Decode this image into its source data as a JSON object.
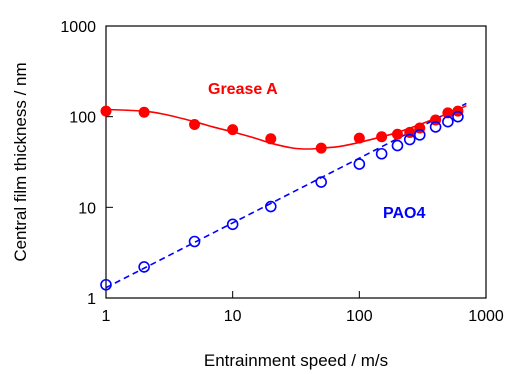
{
  "chart_data": {
    "type": "scatter",
    "xscale": "log",
    "yscale": "log",
    "xlim": [
      1,
      1000
    ],
    "ylim": [
      1,
      1000
    ],
    "grid": false,
    "xlabel": "Entrainment speed / m/s",
    "ylabel": "Central film thickness / nm",
    "xticks": [
      "1",
      "10",
      "100",
      "1000"
    ],
    "yticks": [
      "1",
      "10",
      "100",
      "1000"
    ],
    "series": [
      {
        "name": "Grease A",
        "color": "#ff0000",
        "marker": "filled-circle",
        "points": {
          "x": [
            1,
            2,
            5,
            10,
            20,
            50,
            100,
            150,
            200,
            250,
            300,
            400,
            500,
            600
          ],
          "y": [
            115,
            112,
            82,
            72,
            57,
            45,
            58,
            60,
            64,
            67,
            75,
            92,
            110,
            115
          ]
        },
        "fit_line": {
          "style": "solid",
          "x": [
            1,
            2,
            3,
            5,
            7,
            10,
            15,
            20,
            30,
            40,
            50,
            70,
            100,
            150,
            200,
            300,
            400,
            500,
            600,
            700
          ],
          "y": [
            120,
            115,
            105,
            88,
            77,
            68,
            58,
            51,
            45,
            44,
            45,
            47,
            52,
            60,
            67,
            82,
            96,
            108,
            120,
            132
          ]
        }
      },
      {
        "name": "PAO4",
        "color": "#0000ff",
        "marker": "open-circle",
        "points": {
          "x": [
            1,
            2,
            5,
            10,
            20,
            50,
            100,
            150,
            200,
            250,
            300,
            400,
            500,
            600
          ],
          "y": [
            1.4,
            2.2,
            4.2,
            6.5,
            10.2,
            19,
            30,
            39,
            48,
            56,
            63,
            77,
            88,
            100
          ]
        },
        "fit_line": {
          "style": "dashed",
          "x": [
            1,
            700
          ],
          "y": [
            1.3,
            140
          ]
        }
      }
    ]
  }
}
